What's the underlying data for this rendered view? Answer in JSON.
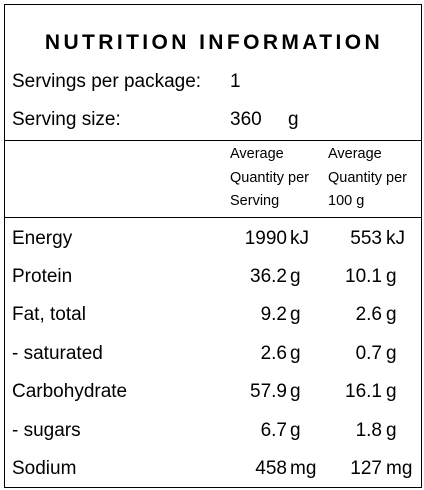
{
  "title": "NUTRITION INFORMATION",
  "servings": {
    "label": "Servings per package:",
    "value": "1"
  },
  "serving_size": {
    "label": "Serving size:",
    "value": "360",
    "unit": "g"
  },
  "columns": {
    "per_serving": [
      "Average",
      "Quantity per",
      "Serving"
    ],
    "per_100g": [
      "Average",
      "Quantity per",
      "100 g"
    ]
  },
  "rows": [
    {
      "name": "Energy",
      "serving": "1990",
      "serving_unit": "kJ",
      "per100": "553",
      "per100_unit": "kJ"
    },
    {
      "name": "Protein",
      "serving": "36.2",
      "serving_unit": "g",
      "per100": "10.1",
      "per100_unit": "g"
    },
    {
      "name": "Fat, total",
      "serving": "9.2",
      "serving_unit": "g",
      "per100": "2.6",
      "per100_unit": "g"
    },
    {
      "name": "- saturated",
      "serving": "2.6",
      "serving_unit": "g",
      "per100": "0.7",
      "per100_unit": "g"
    },
    {
      "name": "Carbohydrate",
      "serving": "57.9",
      "serving_unit": "g",
      "per100": "16.1",
      "per100_unit": "g"
    },
    {
      "name": "- sugars",
      "serving": "6.7",
      "serving_unit": "g",
      "per100": "1.8",
      "per100_unit": "g"
    },
    {
      "name": "Sodium",
      "serving": "458",
      "serving_unit": "mg",
      "per100": "127",
      "per100_unit": "mg"
    }
  ]
}
